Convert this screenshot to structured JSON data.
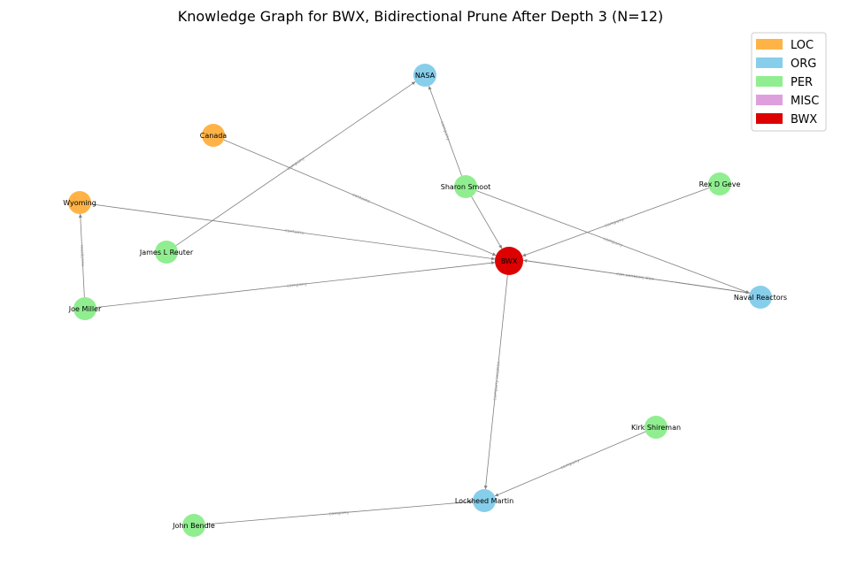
{
  "title": "Knowledge Graph for BWX, Bidirectional Prune After Depth 3 (N=12)",
  "legend": [
    {
      "label": "LOC",
      "color": "#FFB347"
    },
    {
      "label": "ORG",
      "color": "#87CEEB"
    },
    {
      "label": "PER",
      "color": "#90EE90"
    },
    {
      "label": "MISC",
      "color": "#DDA0DD"
    },
    {
      "label": "BWX",
      "color": "#DD0000"
    }
  ],
  "nodes": [
    {
      "id": "NASA",
      "label": "NASA",
      "type": "ORG"
    },
    {
      "id": "Canada",
      "label": "Canada",
      "type": "LOC"
    },
    {
      "id": "Sharon Smoot",
      "label": "Sharon Smoot",
      "type": "PER"
    },
    {
      "id": "Rex D Geve",
      "label": "Rex D Geve",
      "type": "PER"
    },
    {
      "id": "Wyoming",
      "label": "Wyoming",
      "type": "LOC"
    },
    {
      "id": "James L Reuter",
      "label": "James L Reuter",
      "type": "PER"
    },
    {
      "id": "BWX",
      "label": "BWX",
      "type": "BWX"
    },
    {
      "id": "Joe Miller",
      "label": "Joe Miller",
      "type": "PER"
    },
    {
      "id": "Naval Reactors",
      "label": "Naval Reactors",
      "type": "ORG"
    },
    {
      "id": "Kirk Shireman",
      "label": "Kirk Shireman",
      "type": "PER"
    },
    {
      "id": "Lockheed Martin",
      "label": "Lockheed Martin",
      "type": "ORG"
    },
    {
      "id": "John Bendle",
      "label": "John Bendle",
      "type": "PER"
    }
  ],
  "edges": [
    {
      "source": "James L Reuter",
      "target": "NASA",
      "label": "company"
    },
    {
      "source": "Sharon Smoot",
      "target": "NASA",
      "label": "company"
    },
    {
      "source": "Canada",
      "target": "BWX",
      "label": "contains"
    },
    {
      "source": "Wyoming",
      "target": "BWX",
      "label": "contains"
    },
    {
      "source": "Sharon Smoot",
      "target": "BWX",
      "label": ""
    },
    {
      "source": "Rex D Geve",
      "target": "BWX",
      "label": "company"
    },
    {
      "source": "Sharon Smoot",
      "target": "Naval Reactors",
      "label": "company"
    },
    {
      "source": "Naval Reactors",
      "target": "BWX",
      "label": "con contains tion"
    },
    {
      "source": "BWX",
      "target": "Naval Reactors",
      "label": ""
    },
    {
      "source": "Joe Miller",
      "target": "Wyoming",
      "label": "residence"
    },
    {
      "source": "Joe Miller",
      "target": "BWX",
      "label": "company"
    },
    {
      "source": "BWX",
      "target": "Lockheed Martin",
      "label": "company location"
    },
    {
      "source": "Kirk Shireman",
      "target": "Lockheed Martin",
      "label": "company"
    },
    {
      "source": "John Bendle",
      "target": "Lockheed Martin",
      "label": "company"
    }
  ]
}
